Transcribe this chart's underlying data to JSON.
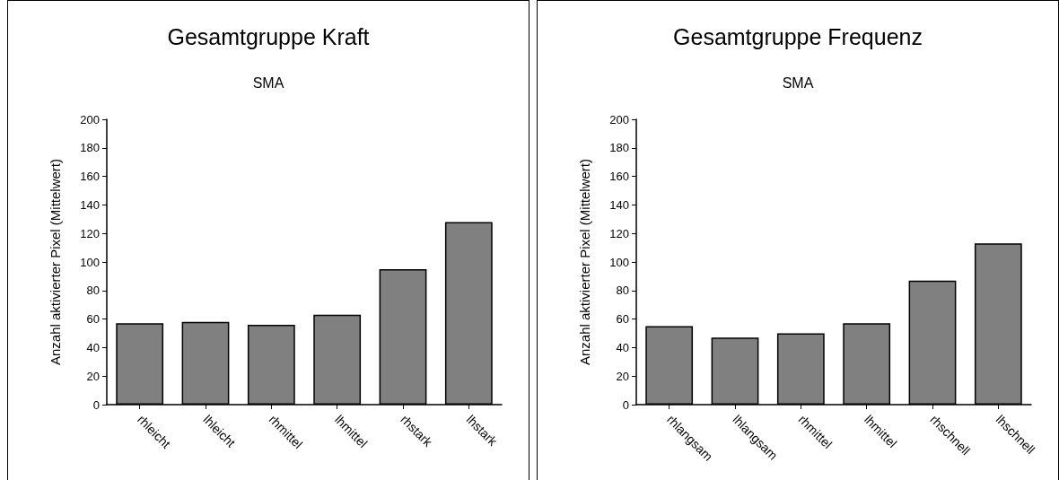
{
  "chart_data": [
    {
      "type": "bar",
      "title": "Gesamtgruppe Kraft",
      "subtitle": "SMA",
      "ylabel": "Anzahl aktivierter Pixel (Mittelwert)",
      "categories": [
        "rhleicht",
        "lhleicht",
        "rhmittel",
        "lhmittel",
        "rhstark",
        "lhstark"
      ],
      "values": [
        57,
        58,
        56,
        63,
        95,
        128
      ],
      "color": "#808080",
      "ylim": [
        0,
        200
      ],
      "yticks": [
        0,
        20,
        40,
        60,
        80,
        100,
        120,
        140,
        160,
        180,
        200
      ]
    },
    {
      "type": "bar",
      "title": "Gesamtgruppe Frequenz",
      "subtitle": "SMA",
      "ylabel": "Anzahl aktivierter Pixel (Mittelwert)",
      "categories": [
        "rhlangsam",
        "lhlangsam",
        "rhmittel",
        "lhmittel",
        "rhschnell",
        "lhschnell"
      ],
      "values": [
        55,
        47,
        50,
        57,
        87,
        113
      ],
      "color": "#808080",
      "ylim": [
        0,
        200
      ],
      "yticks": [
        0,
        20,
        40,
        60,
        80,
        100,
        120,
        140,
        160,
        180,
        200
      ]
    }
  ]
}
